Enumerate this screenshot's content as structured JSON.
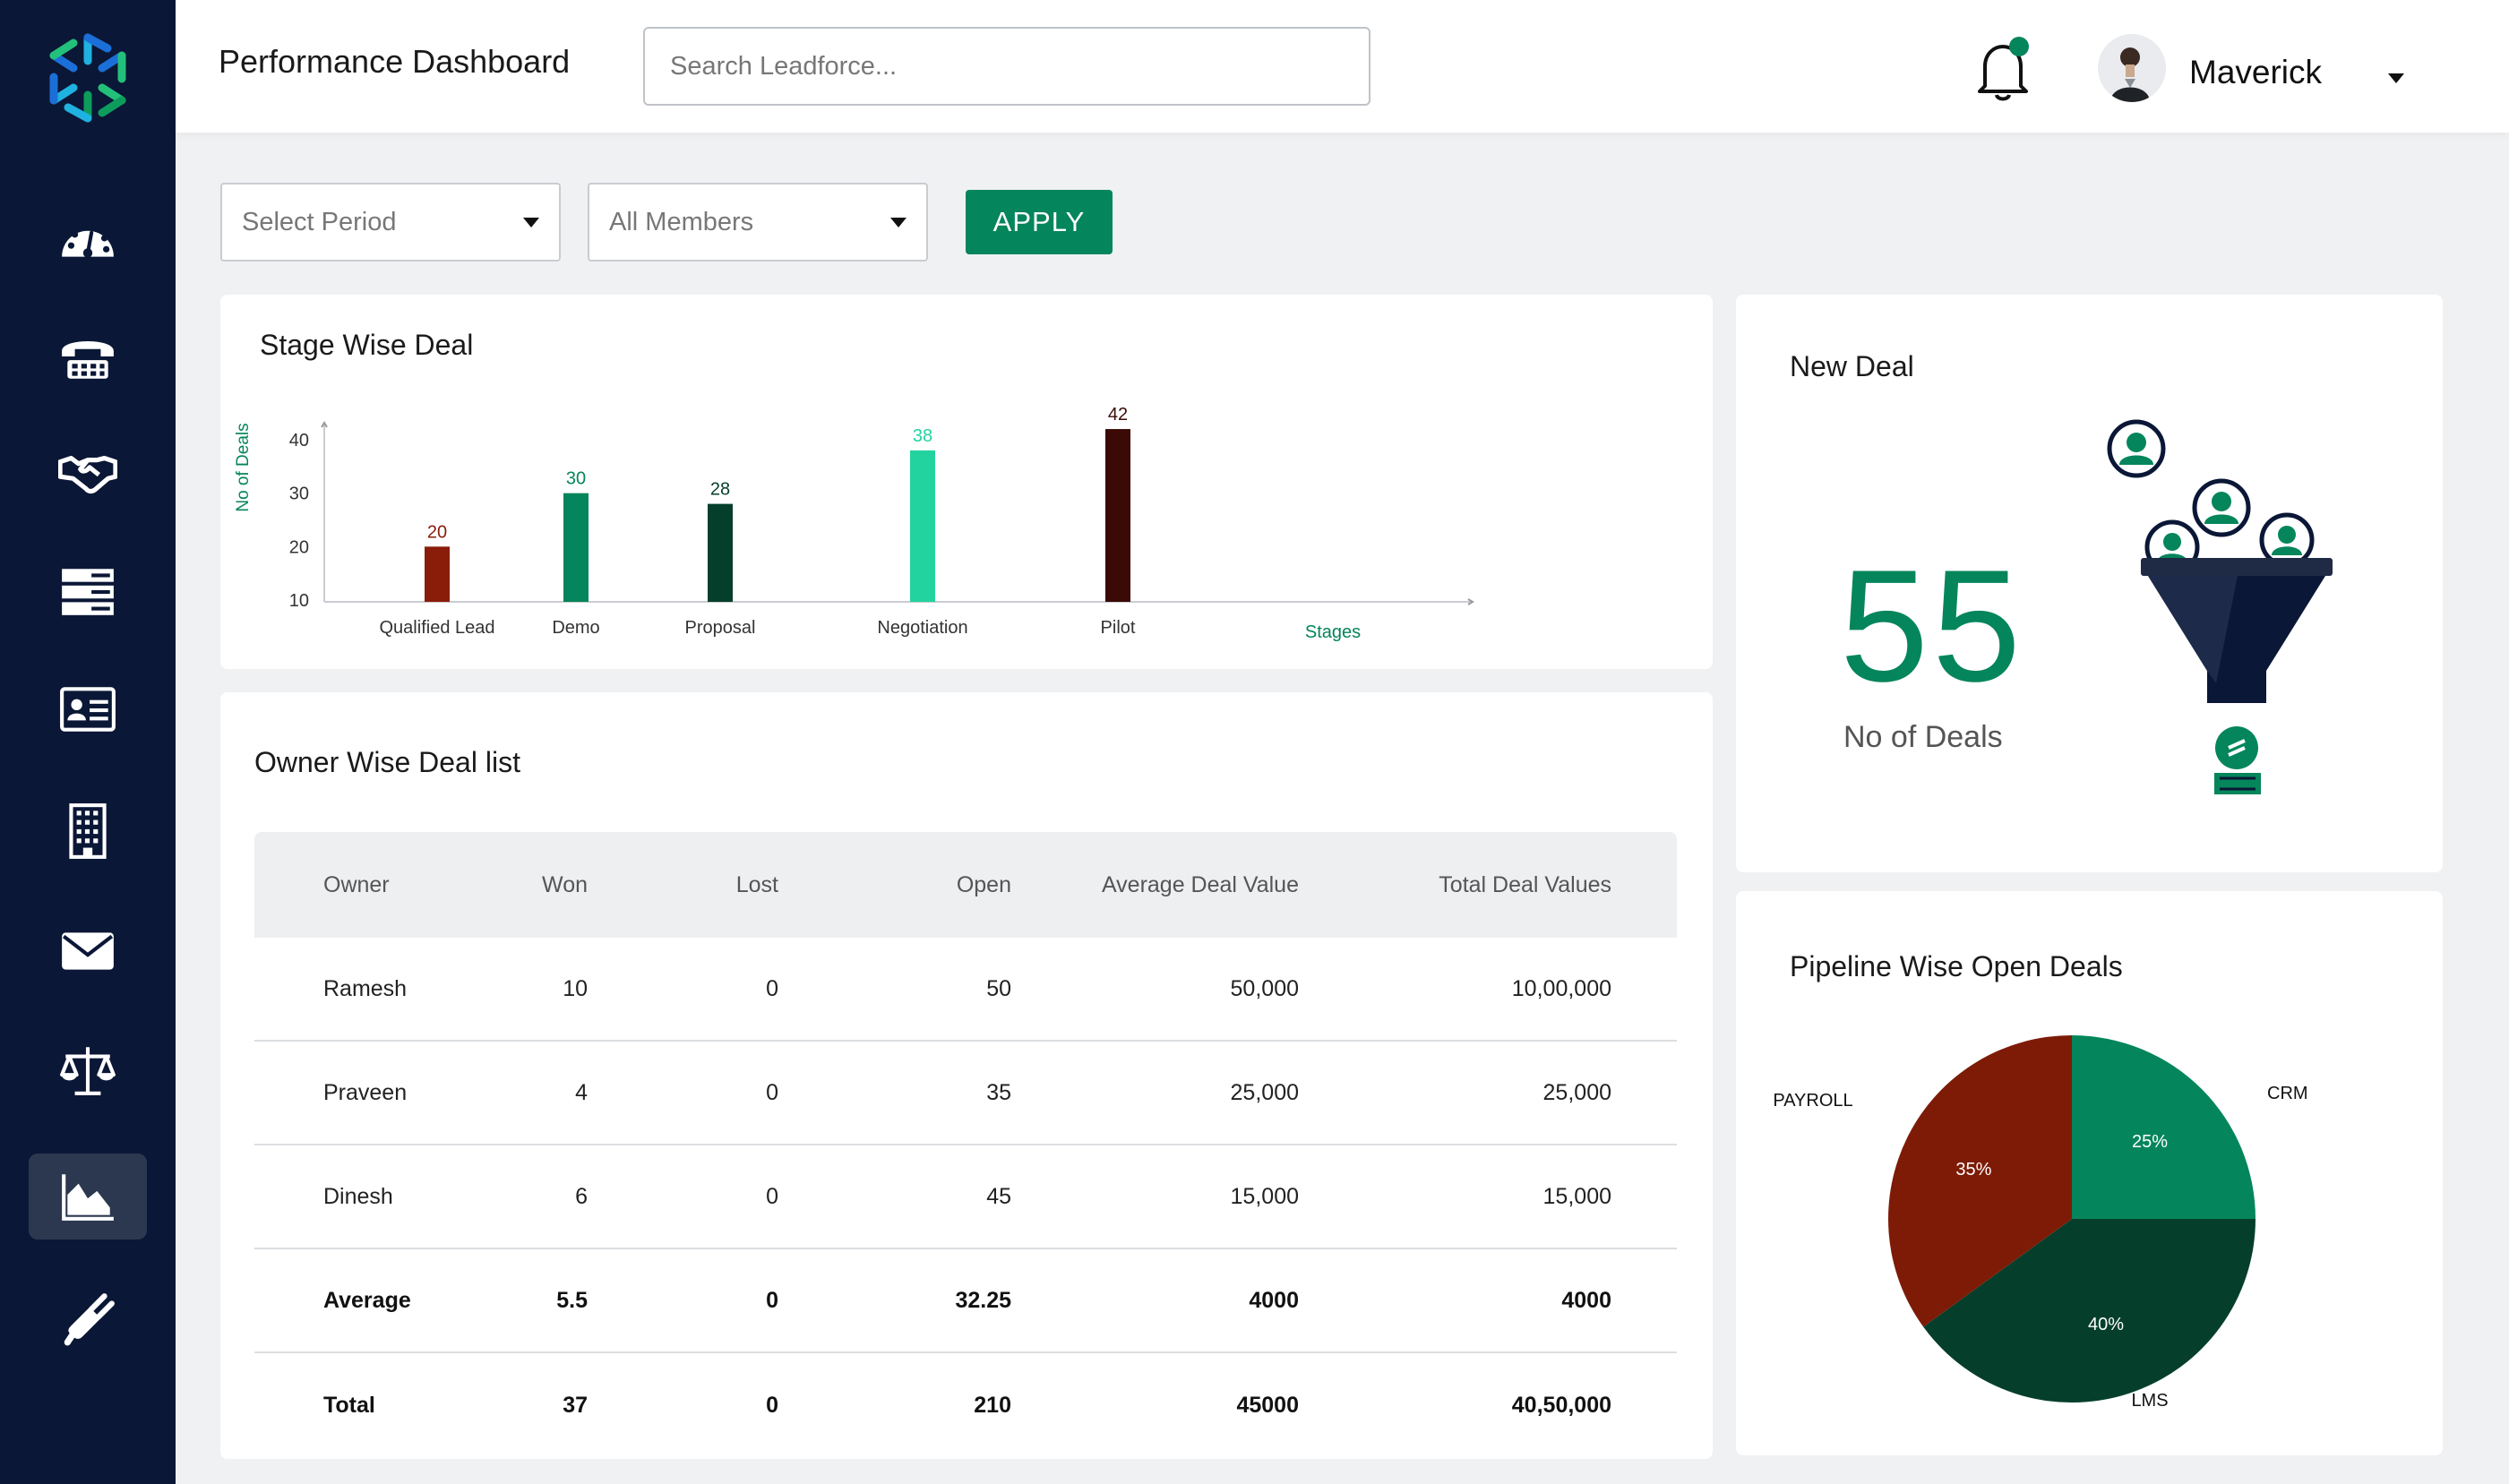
{
  "header": {
    "title": "Performance Dashboard",
    "search_placeholder": "Search Leadforce...",
    "user_name": "Maverick"
  },
  "sidebar": {
    "items": [
      {
        "icon": "speedometer-icon",
        "active": false
      },
      {
        "icon": "telephone-icon",
        "active": false
      },
      {
        "icon": "handshake-icon",
        "active": false
      },
      {
        "icon": "server-rack-icon",
        "active": false
      },
      {
        "icon": "contact-card-icon",
        "active": false
      },
      {
        "icon": "building-icon",
        "active": false
      },
      {
        "icon": "envelope-icon",
        "active": false
      },
      {
        "icon": "scales-icon",
        "active": false
      },
      {
        "icon": "area-chart-icon",
        "active": true
      },
      {
        "icon": "plug-icon",
        "active": false
      }
    ]
  },
  "filters": {
    "period_placeholder": "Select Period",
    "members_value": "All Members",
    "apply_label": "APPLY"
  },
  "stage_chart": {
    "title": "Stage Wise Deal",
    "ylabel": "No of Deals",
    "xlabel": "Stages",
    "yticks": [
      "10",
      "20",
      "30",
      "40"
    ],
    "categories": [
      "Qualified Lead",
      "Demo",
      "Proposal",
      "Negotiation",
      "Pilot"
    ],
    "values": [
      20,
      30,
      28,
      38,
      42
    ],
    "value_labels": [
      "20",
      "30",
      "28",
      "38",
      "42"
    ],
    "colors": [
      "#8a1c0a",
      "#05855b",
      "#053f2c",
      "#22d3a0",
      "#3b0a06"
    ]
  },
  "new_deal": {
    "title": "New Deal",
    "count": "55",
    "label": "No of Deals"
  },
  "owner_table": {
    "title": "Owner Wise Deal list",
    "columns": [
      "Owner",
      "Won",
      "Lost",
      "Open",
      "Average Deal Value",
      "Total Deal Values"
    ],
    "rows": [
      [
        "Ramesh",
        "10",
        "0",
        "50",
        "50,000",
        "10,00,000"
      ],
      [
        "Praveen",
        "4",
        "0",
        "35",
        "25,000",
        "25,000"
      ],
      [
        "Dinesh",
        "6",
        "0",
        "45",
        "15,000",
        "15,000"
      ],
      [
        "Average",
        "5.5",
        "0",
        "32.25",
        "4000",
        "4000"
      ],
      [
        "Total",
        "37",
        "0",
        "210",
        "45000",
        "40,50,000"
      ]
    ]
  },
  "pipeline_chart": {
    "title": "Pipeline Wise Open Deals",
    "slices": [
      {
        "name": "CRM",
        "label": "25%",
        "value": 25,
        "color": "#05855b"
      },
      {
        "name": "LMS",
        "label": "40%",
        "value": 40,
        "color": "#053f2c"
      },
      {
        "name": "PAYROLL",
        "label": "35%",
        "value": 35,
        "color": "#7d1b07"
      }
    ]
  },
  "chart_data": [
    {
      "type": "bar",
      "title": "Stage Wise Deal",
      "xlabel": "Stages",
      "ylabel": "No of Deals",
      "categories": [
        "Qualified Lead",
        "Demo",
        "Proposal",
        "Negotiation",
        "Pilot"
      ],
      "values": [
        20,
        30,
        28,
        38,
        42
      ],
      "ylim": [
        10,
        45
      ],
      "grid": false
    },
    {
      "type": "pie",
      "title": "Pipeline Wise Open Deals",
      "categories": [
        "CRM",
        "LMS",
        "PAYROLL"
      ],
      "values": [
        25,
        40,
        35
      ]
    }
  ]
}
